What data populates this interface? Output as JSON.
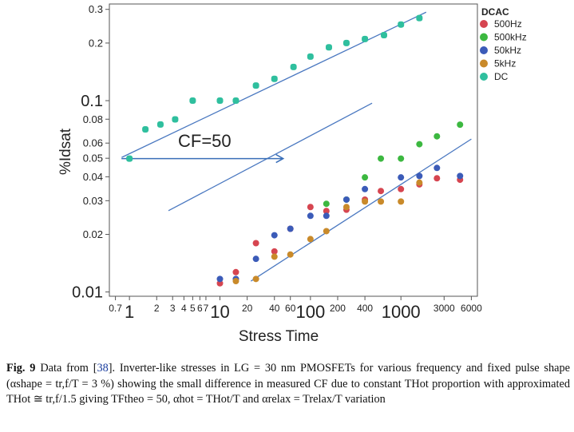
{
  "chart_data": {
    "type": "scatter",
    "xlabel": "Stress Time",
    "ylabel": "%Idsat",
    "x_scale": "log",
    "y_scale": "log",
    "xlim": [
      0.6,
      7000
    ],
    "ylim": [
      0.0095,
      0.32
    ],
    "grid": false,
    "legend_title": "DCAC",
    "legend_position": "right",
    "x_ticks": [
      {
        "value": 0.7,
        "label": "0.7",
        "size": "small"
      },
      {
        "value": 1,
        "label": "1",
        "size": "large"
      },
      {
        "value": 2,
        "label": "2",
        "size": "small"
      },
      {
        "value": 3,
        "label": "3",
        "size": "small"
      },
      {
        "value": 4,
        "label": "4",
        "size": "small"
      },
      {
        "value": 5,
        "label": "5",
        "size": "small"
      },
      {
        "value": 6,
        "label": "6",
        "size": "small"
      },
      {
        "value": 7,
        "label": "7",
        "size": "small"
      },
      {
        "value": 10,
        "label": "10",
        "size": "large"
      },
      {
        "value": 20,
        "label": "20",
        "size": "small"
      },
      {
        "value": 40,
        "label": "40",
        "size": "small"
      },
      {
        "value": 60,
        "label": "60",
        "size": "small"
      },
      {
        "value": 100,
        "label": "100",
        "size": "large"
      },
      {
        "value": 200,
        "label": "200",
        "size": "small"
      },
      {
        "value": 400,
        "label": "400",
        "size": "small"
      },
      {
        "value": 1000,
        "label": "1000",
        "size": "large"
      },
      {
        "value": 3000,
        "label": "3000",
        "size": "small"
      },
      {
        "value": 6000,
        "label": "6000",
        "size": "small"
      }
    ],
    "y_ticks": [
      {
        "value": 0.01,
        "label": "0.01",
        "size": "large"
      },
      {
        "value": 0.02,
        "label": "0.02",
        "size": "small"
      },
      {
        "value": 0.03,
        "label": "0.03",
        "size": "small"
      },
      {
        "value": 0.04,
        "label": "0.04",
        "size": "small"
      },
      {
        "value": 0.05,
        "label": "0.05",
        "size": "small"
      },
      {
        "value": 0.06,
        "label": "0.06",
        "size": "small"
      },
      {
        "value": 0.08,
        "label": "0.08",
        "size": "small"
      },
      {
        "value": 0.1,
        "label": "0.1",
        "size": "large"
      },
      {
        "value": 0.2,
        "label": "0.2",
        "size": "small"
      },
      {
        "value": 0.3,
        "label": "0.3",
        "size": "small"
      }
    ],
    "series": [
      {
        "name": "500Hz",
        "color": "#d64550",
        "points": [
          [
            10,
            0.0111
          ],
          [
            15,
            0.0127
          ],
          [
            25,
            0.018
          ],
          [
            40,
            0.0163
          ],
          [
            60,
            0.0214
          ],
          [
            100,
            0.0278
          ],
          [
            150,
            0.0265
          ],
          [
            250,
            0.0269
          ],
          [
            400,
            0.0304
          ],
          [
            600,
            0.0337
          ],
          [
            1000,
            0.0345
          ],
          [
            1600,
            0.0365
          ],
          [
            2500,
            0.0393
          ],
          [
            4500,
            0.0386
          ]
        ]
      },
      {
        "name": "500kHz",
        "color": "#3cb840",
        "points": [
          [
            150,
            0.0289
          ],
          [
            250,
            0.0304
          ],
          [
            400,
            0.0397
          ],
          [
            600,
            0.0498
          ],
          [
            1000,
            0.0498
          ],
          [
            1600,
            0.0592
          ],
          [
            2500,
            0.0651
          ],
          [
            4500,
            0.0749
          ]
        ]
      },
      {
        "name": "50kHz",
        "color": "#3b5bb8",
        "points": [
          [
            10,
            0.0117
          ],
          [
            15,
            0.0117
          ],
          [
            25,
            0.0149
          ],
          [
            40,
            0.0198
          ],
          [
            60,
            0.0214
          ],
          [
            100,
            0.025
          ],
          [
            150,
            0.025
          ],
          [
            250,
            0.0304
          ],
          [
            400,
            0.0345
          ],
          [
            1000,
            0.0397
          ],
          [
            1600,
            0.0404
          ],
          [
            2500,
            0.0445
          ],
          [
            4500,
            0.0404
          ]
        ]
      },
      {
        "name": "5kHz",
        "color": "#c98a2a",
        "points": [
          [
            15,
            0.0114
          ],
          [
            25,
            0.0117
          ],
          [
            40,
            0.0153
          ],
          [
            60,
            0.0157
          ],
          [
            100,
            0.0189
          ],
          [
            150,
            0.0208
          ],
          [
            250,
            0.0278
          ],
          [
            400,
            0.0297
          ],
          [
            600,
            0.0297
          ],
          [
            1000,
            0.0297
          ],
          [
            1600,
            0.0373
          ]
        ]
      },
      {
        "name": "DC",
        "color": "#2fbf9e",
        "points": [
          [
            1,
            0.0498
          ],
          [
            1.5,
            0.0708
          ],
          [
            2.2,
            0.0751
          ],
          [
            3.2,
            0.0798
          ],
          [
            5,
            0.1
          ],
          [
            10,
            0.1
          ],
          [
            15,
            0.1
          ],
          [
            25,
            0.12
          ],
          [
            40,
            0.13
          ],
          [
            65,
            0.15
          ],
          [
            100,
            0.17
          ],
          [
            160,
            0.19
          ],
          [
            250,
            0.2
          ],
          [
            400,
            0.21
          ],
          [
            650,
            0.22
          ],
          [
            1000,
            0.25
          ],
          [
            1600,
            0.27
          ]
        ]
      }
    ],
    "fit_lines": [
      {
        "from": [
          0.82,
          0.0505
        ],
        "to": [
          1900,
          0.29
        ]
      },
      {
        "from": [
          22,
          0.0114
        ],
        "to": [
          6000,
          0.063
        ]
      },
      {
        "from": [
          2.7,
          0.0266
        ],
        "to": [
          480,
          0.097
        ]
      }
    ],
    "annotation": {
      "text": "CF=50",
      "arrow_from": [
        1,
        0.0498
      ],
      "arrow_to": [
        50,
        0.0498
      ]
    }
  },
  "caption": {
    "figure_label": "Fig. 9",
    "text_before_ref": "Data from [",
    "ref": "38",
    "text_after_ref": "]. Inverter-like stresses in LG = 30 nm PMOSFETs for various frequency and fixed pulse shape (αshape = tr,f/T = 3 %) showing the small difference in measured CF due to constant THot proportion with approximated THot ≅ tr,f/1.5 giving TFtheo = 50, αhot = THot/T and αrelax = Trelax/T variation"
  }
}
